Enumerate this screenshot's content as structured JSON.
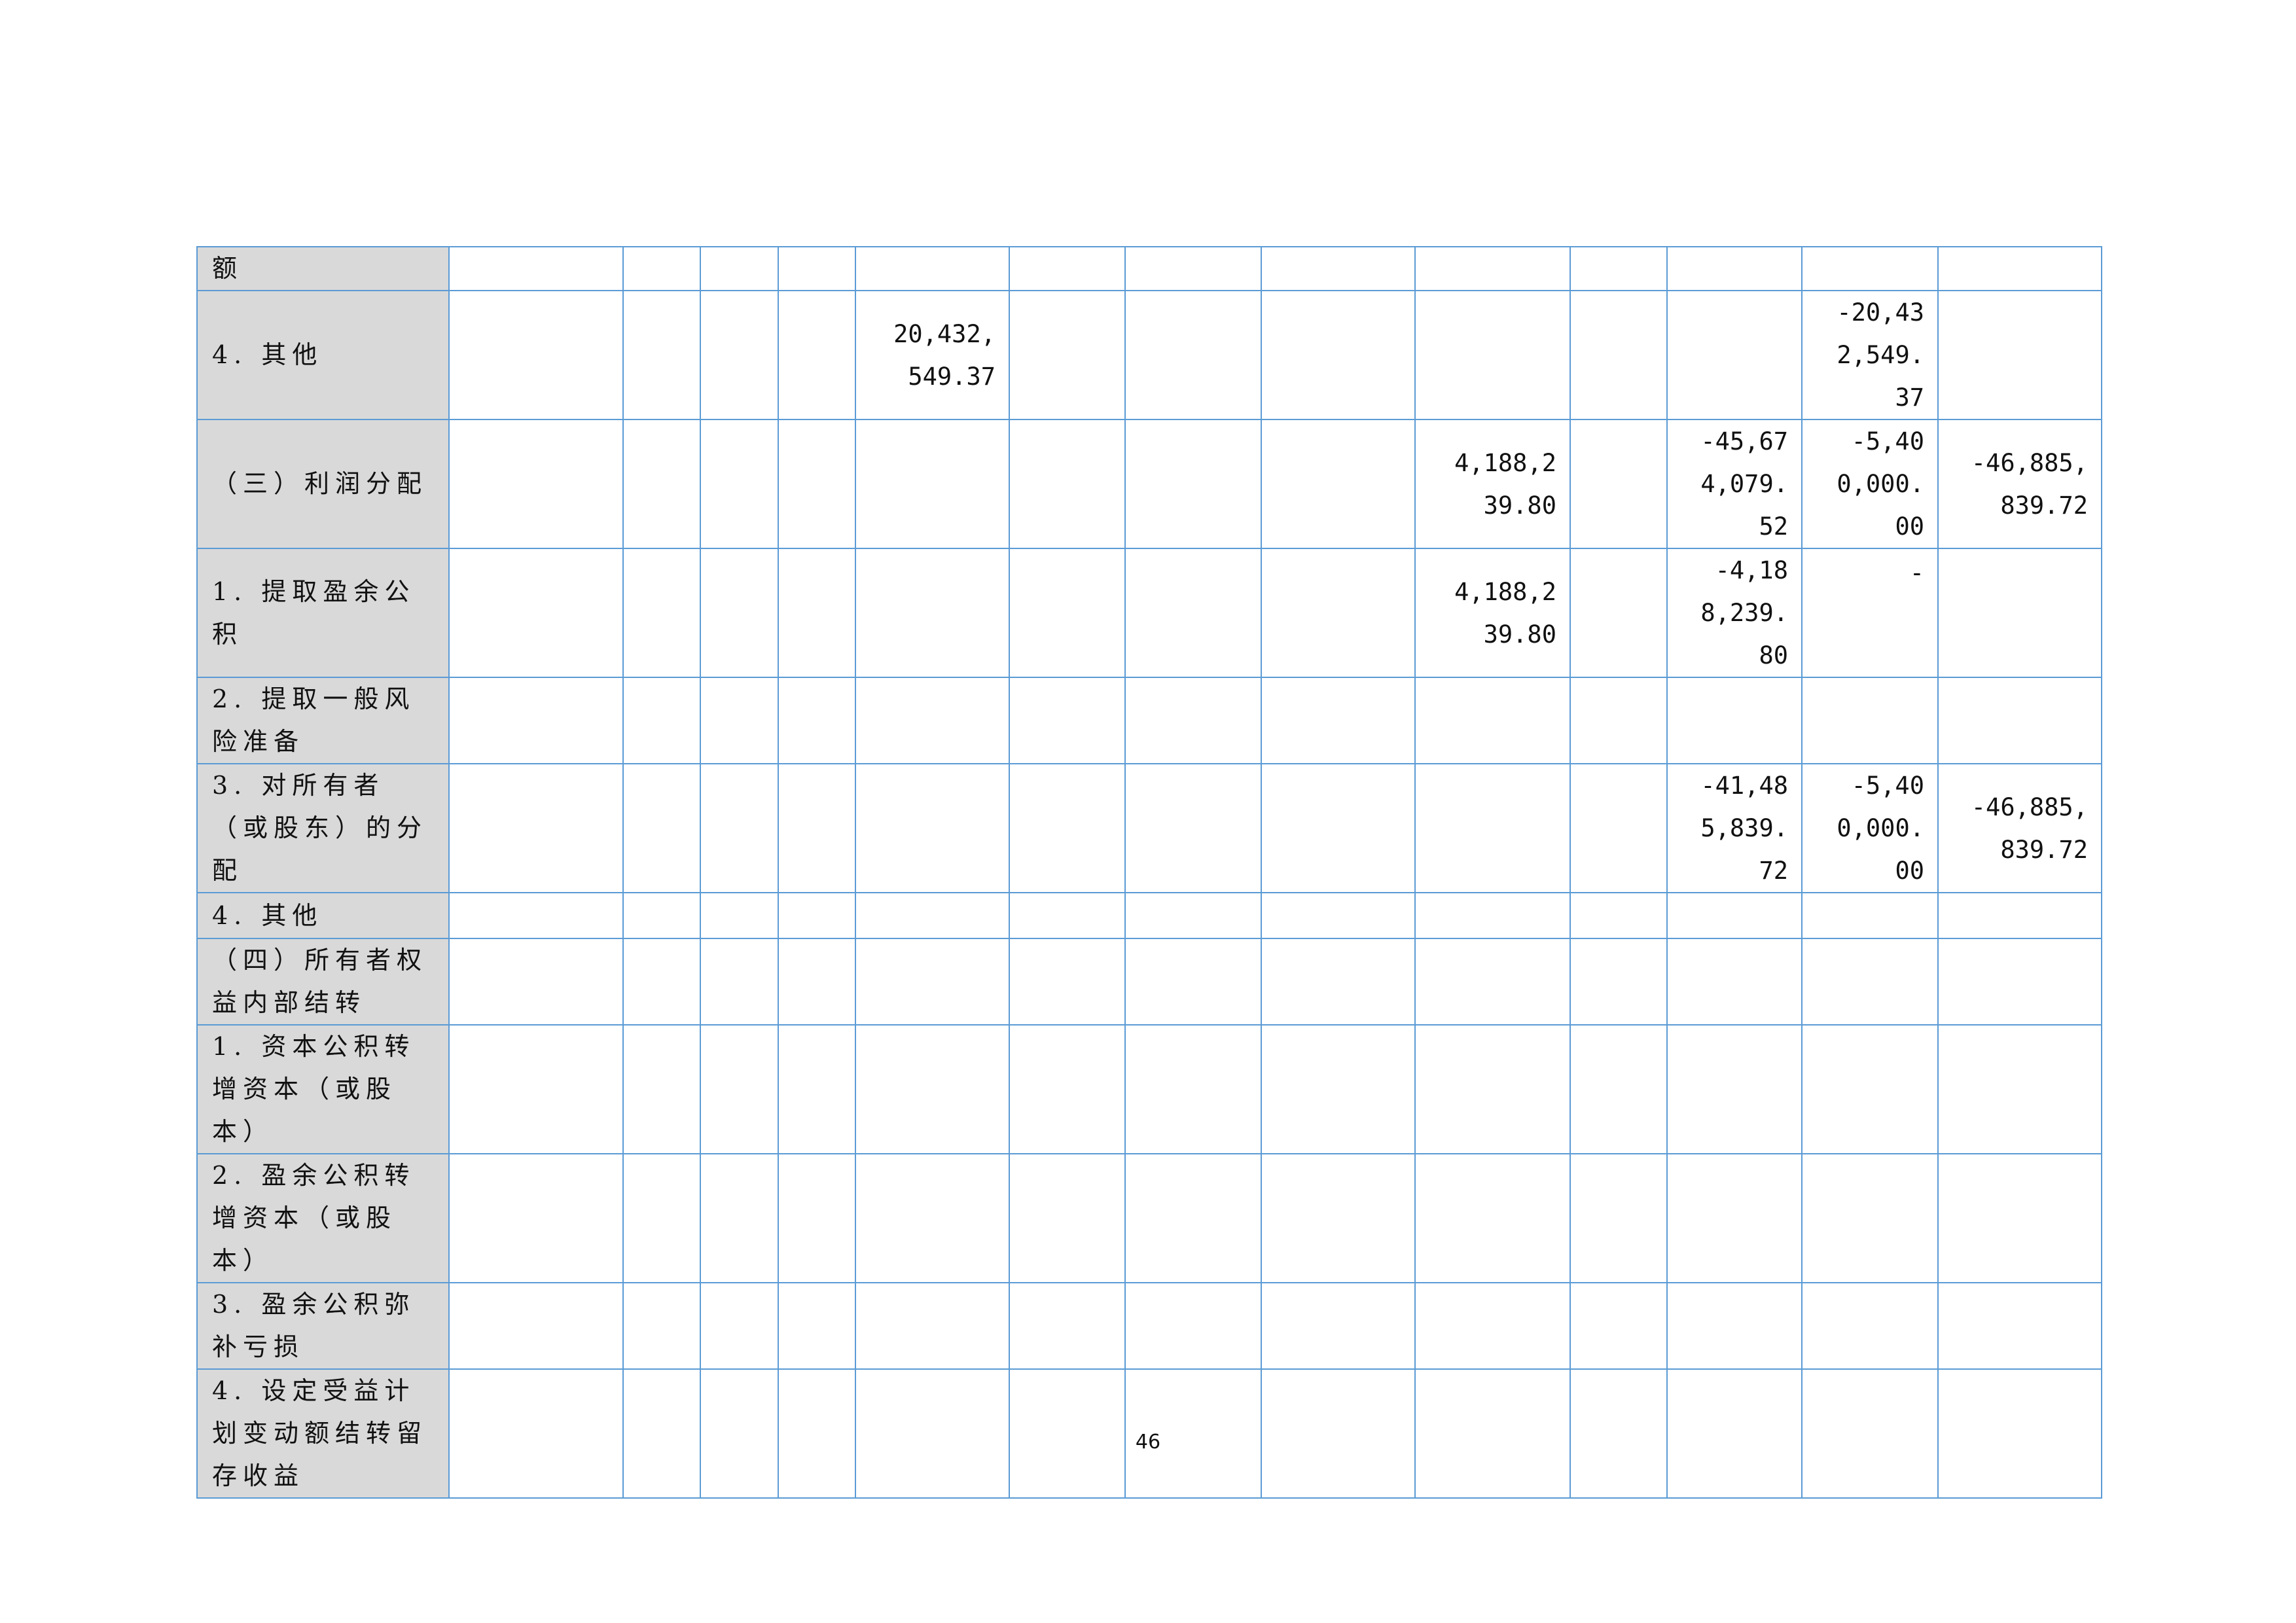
{
  "table": {
    "rows": [
      {
        "label": "额",
        "cells": {}
      },
      {
        "label": "4. 其他",
        "cells": {
          "5": "20,432,549.37",
          "12": "-20,432,549.37"
        }
      },
      {
        "label": "（三）利润分配",
        "cells": {
          "9": "4,188,239.80",
          "11": "-45,674,079.52",
          "12": "-5,400,000.00",
          "13": "-46,885,839.72"
        }
      },
      {
        "label": "1. 提取盈余公积",
        "cells": {
          "9": "4,188,239.80",
          "11": "-4,188,239.80",
          "12": "-"
        }
      },
      {
        "label": "2. 提取一般风险准备",
        "cells": {}
      },
      {
        "label": "3. 对所有者（或股东）的分配",
        "cells": {
          "11": "-41,485,839.72",
          "12": "-5,400,000.00",
          "13": "-46,885,839.72"
        }
      },
      {
        "label": "4. 其他",
        "cells": {}
      },
      {
        "label": "（四）所有者权益内部结转",
        "cells": {}
      },
      {
        "label": "1. 资本公积转增资本（或股本）",
        "cells": {}
      },
      {
        "label": "2. 盈余公积转增资本（或股本）",
        "cells": {}
      },
      {
        "label": "3. 盈余公积弥补亏损",
        "cells": {}
      },
      {
        "label": "4. 设定受益计划变动额结转留存收益",
        "cells": {}
      }
    ]
  },
  "footer": {
    "page_number": "46"
  },
  "colors": {
    "border": "#5b9bd5",
    "label_bg": "#d9d9d9"
  }
}
